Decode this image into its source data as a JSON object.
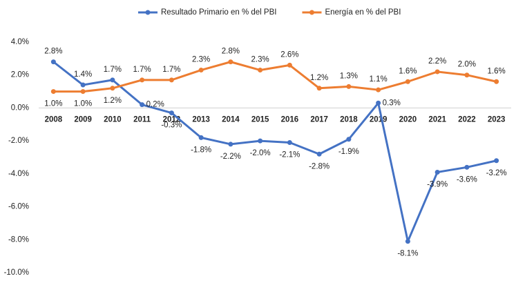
{
  "chart_data": {
    "type": "line",
    "categories": [
      "2008",
      "2009",
      "2010",
      "2011",
      "2012",
      "2013",
      "2014",
      "2015",
      "2016",
      "2017",
      "2018",
      "2019",
      "2020",
      "2021",
      "2022",
      "2023"
    ],
    "series": [
      {
        "name": "Resultado Primario en % del PBI",
        "color": "#4472c4",
        "values": [
          2.8,
          1.4,
          1.7,
          0.2,
          -0.3,
          -1.8,
          -2.2,
          -2.0,
          -2.1,
          -2.8,
          -1.9,
          0.3,
          -8.1,
          -3.9,
          -3.6,
          -3.2
        ],
        "value_labels": [
          "2.8%",
          "1.4%",
          "1.7%",
          "0.2%",
          "-0.3%",
          "-1.8%",
          "-2.2%",
          "-2.0%",
          "-2.1%",
          "-2.8%",
          "-1.9%",
          "0.3%",
          "-8.1%",
          "-3.9%",
          "-3.6%",
          "-3.2%"
        ]
      },
      {
        "name": "Energía en % del PBI",
        "color": "#ed7d31",
        "values": [
          1.0,
          1.0,
          1.2,
          1.7,
          1.7,
          2.3,
          2.8,
          2.3,
          2.6,
          1.2,
          1.3,
          1.1,
          1.6,
          2.2,
          2.0,
          1.6
        ],
        "value_labels": [
          "1.0%",
          "1.0%",
          "1.2%",
          "1.7%",
          "1.7%",
          "2.3%",
          "2.8%",
          "2.3%",
          "2.6%",
          "1.2%",
          "1.3%",
          "1.1%",
          "1.6%",
          "2.2%",
          "2.0%",
          "1.6%"
        ]
      }
    ],
    "ylim": [
      -10,
      4
    ],
    "yticks": [
      {
        "value": 4,
        "label": "4.0%"
      },
      {
        "value": 2,
        "label": "2.0%"
      },
      {
        "value": 0,
        "label": "0.0%"
      },
      {
        "value": -2,
        "label": "-2.0%"
      },
      {
        "value": -4,
        "label": "-4.0%"
      },
      {
        "value": -6,
        "label": "-6.0%"
      },
      {
        "value": -8,
        "label": "-8.0%"
      },
      {
        "value": -10,
        "label": "-10.0%"
      }
    ],
    "grid": false,
    "legend": "top"
  }
}
